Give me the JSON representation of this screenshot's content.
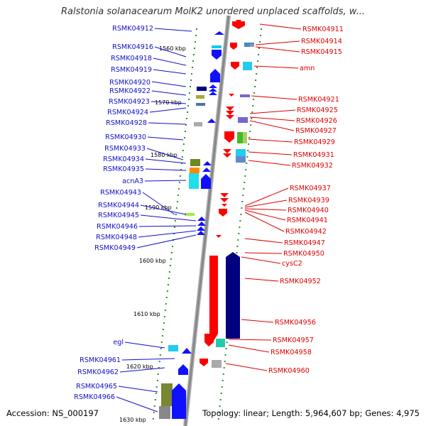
{
  "title": "Ralstonia solanacearum MolK2 unordered unplaced scaffolds, w...",
  "footer": {
    "accession": "Accession: NS_000197",
    "topology": "Topology: linear; Length: 5,964,607 bp; Genes: 4,975"
  },
  "colors": {
    "left_label": "#1010c8",
    "right_label": "#e00000",
    "backbone": "#9a9a9a",
    "dots": "#2e8b2e"
  },
  "scale_ticks": [
    "1560 kbp",
    "1570 kbp",
    "1580 kbp",
    "1590 kbp",
    "1600 kbp",
    "1610 kbp",
    "1620 kbp",
    "1630 kbp"
  ],
  "left_genes": [
    "RSMK04912",
    "RSMK04916",
    "RSMK04918",
    "RSMK04919",
    "RSMK04920",
    "RSMK04922",
    "RSMK04923",
    "RSMK04924",
    "RSMK04928",
    "RSMK04930",
    "RSMK04933",
    "RSMK04934",
    "RSMK04935",
    "acnA3",
    "RSMK04943",
    "RSMK04944",
    "RSMK04945",
    "RSMK04946",
    "RSMK04948",
    "RSMK04949",
    "egl",
    "RSMK04961",
    "RSMK04962",
    "RSMK04965",
    "RSMK04966"
  ],
  "right_genes": [
    "RSMK04911",
    "RSMK04914",
    "RSMK04915",
    "amn",
    "RSMK04921",
    "RSMK04925",
    "RSMK04926",
    "RSMK04927",
    "RSMK04929",
    "RSMK04931",
    "RSMK04932",
    "RSMK04937",
    "RSMK04939",
    "RSMK04940",
    "RSMK04941",
    "RSMK04942",
    "RSMK04947",
    "RSMK04950",
    "cysC2",
    "RSMK04952",
    "RSMK04956",
    "RSMK04957",
    "RSMK04958",
    "RSMK04960"
  ]
}
